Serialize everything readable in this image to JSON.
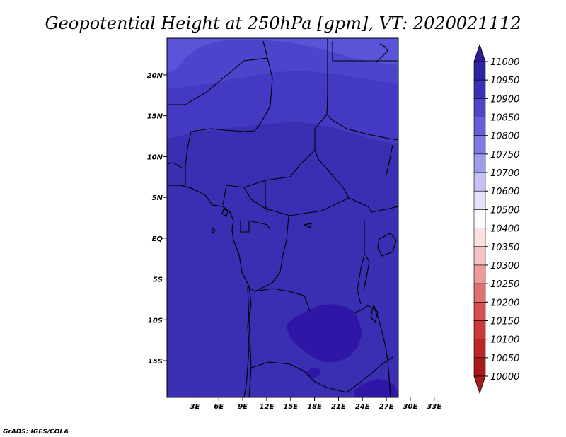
{
  "title": "Geopotential Height at 250hPa [gpm], VT: 2020021112",
  "credit": "GrADS: IGES/COLA",
  "map": {
    "lat_range": [
      -19.5,
      24.5
    ],
    "lon_range": [
      -0.5,
      28.5
    ],
    "lat_ticks": [
      {
        "value": 20,
        "label": "20N"
      },
      {
        "value": 15,
        "label": "15N"
      },
      {
        "value": 10,
        "label": "10N"
      },
      {
        "value": 5,
        "label": "5N"
      },
      {
        "value": 0,
        "label": "EQ"
      },
      {
        "value": -5,
        "label": "5S"
      },
      {
        "value": -10,
        "label": "10S"
      },
      {
        "value": -15,
        "label": "15S"
      }
    ],
    "lon_ticks": [
      {
        "value": 3,
        "label": "3E"
      },
      {
        "value": 6,
        "label": "6E"
      },
      {
        "value": 9,
        "label": "9E"
      },
      {
        "value": 12,
        "label": "12E"
      },
      {
        "value": 15,
        "label": "15E"
      },
      {
        "value": 18,
        "label": "18E"
      },
      {
        "value": 21,
        "label": "21E"
      },
      {
        "value": 24,
        "label": "24E"
      },
      {
        "value": 27,
        "label": "27E"
      },
      {
        "value": 30,
        "label": "30E"
      },
      {
        "value": 33,
        "label": "33E"
      }
    ],
    "field_color": "#3a2eb3",
    "contour_colors": {
      "c10800": "#5a54d8",
      "c10850": "#4c45cc",
      "c10900": "#4439c2",
      "c10950": "#2f16a6"
    }
  },
  "colorbar": {
    "levels": [
      {
        "label": "11000",
        "color": "#2d1a96"
      },
      {
        "label": "10950",
        "color": "#2e22a2"
      },
      {
        "label": "10900",
        "color": "#3b30b5"
      },
      {
        "label": "10850",
        "color": "#4d46c8"
      },
      {
        "label": "10800",
        "color": "#6560d8"
      },
      {
        "label": "10750",
        "color": "#7f7ae2"
      },
      {
        "label": "10700",
        "color": "#a09cec"
      },
      {
        "label": "10600",
        "color": "#c4c2f4"
      },
      {
        "label": "10500",
        "color": "#e4e3fa"
      },
      {
        "label": "10400",
        "color": "#fbfbff"
      },
      {
        "label": "10350",
        "color": "#fbe1e1"
      },
      {
        "label": "10300",
        "color": "#f6c2c2"
      },
      {
        "label": "10250",
        "color": "#ee9a9a"
      },
      {
        "label": "10200",
        "color": "#e27070"
      },
      {
        "label": "10150",
        "color": "#d85050"
      },
      {
        "label": "10100",
        "color": "#cd3838"
      },
      {
        "label": "10050",
        "color": "#be2424"
      },
      {
        "label": "10000",
        "color": "#a81a1a"
      }
    ]
  }
}
